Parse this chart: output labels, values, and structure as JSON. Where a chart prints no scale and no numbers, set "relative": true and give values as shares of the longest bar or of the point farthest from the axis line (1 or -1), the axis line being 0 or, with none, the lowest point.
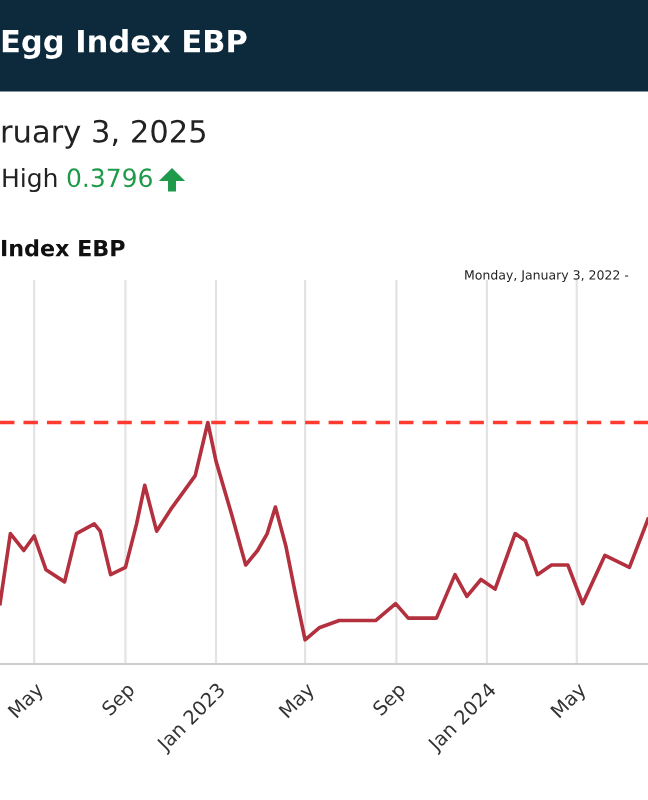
{
  "chart_data": {
    "type": "line",
    "title": "Egg Index EBP",
    "subtitle": "ruary 3, 2025",
    "annotations": [
      "High",
      "0.3796",
      "Index EBP",
      "Monday, January 3, 2022 -"
    ],
    "relative": true,
    "x": [
      "2022-03-16",
      "2022-03-30",
      "2022-04-17",
      "2022-05-01",
      "2022-05-17",
      "2022-06-11",
      "2022-06-27",
      "2022-07-21",
      "2022-07-29",
      "2022-08-12",
      "2022-09-01",
      "2022-09-16",
      "2022-09-27",
      "2022-10-13",
      "2022-11-01",
      "2022-12-04",
      "2022-12-21",
      "2023-01-01",
      "2023-01-22",
      "2023-02-10",
      "2023-02-26",
      "2023-03-11",
      "2023-03-22",
      "2023-04-05",
      "2023-04-18",
      "2023-05-01",
      "2023-05-20",
      "2023-06-16",
      "2023-08-04",
      "2023-08-31",
      "2023-09-17",
      "2023-10-25",
      "2023-11-19",
      "2023-12-05",
      "2023-12-24",
      "2024-01-12",
      "2024-02-08",
      "2024-02-22",
      "2024-03-09",
      "2024-03-28",
      "2024-04-19",
      "2024-05-09",
      "2024-06-08",
      "2024-07-11",
      "2024-08-05"
    ],
    "series": [
      {
        "color": "#b3303e",
        "values": [
          0.25,
          0.54,
          0.47,
          0.53,
          0.39,
          0.34,
          0.54,
          0.58,
          0.55,
          0.37,
          0.4,
          0.58,
          0.74,
          0.55,
          0.64,
          0.78,
          1,
          0.84,
          0.62,
          0.41,
          0.47,
          0.54,
          0.65,
          0.49,
          0.29,
          0.1,
          0.15,
          0.18,
          0.18,
          0.25,
          0.19,
          0.19,
          0.37,
          0.28,
          0.35,
          0.31,
          0.54,
          0.51,
          0.37,
          0.41,
          0.41,
          0.25,
          0.45,
          0.4,
          0.6
        ]
      }
    ],
    "xlim": [
      "2022-03-16",
      "2024-08-05"
    ],
    "xticks": [
      {
        "value": "2022-05-01",
        "label": "May"
      },
      {
        "value": "2022-09-01",
        "label": "Sep"
      },
      {
        "value": "2023-01-01",
        "label": "Jan 2023"
      },
      {
        "value": "2023-05-01",
        "label": "May"
      },
      {
        "value": "2023-09-01",
        "label": "Sep"
      },
      {
        "value": "2024-01-01",
        "label": "Jan 2024"
      },
      {
        "value": "2024-05-01",
        "label": "May"
      }
    ],
    "ref_lines": [
      {
        "axis": "y",
        "value": 1,
        "color": "#ff3b30",
        "line_style": "dashed"
      }
    ],
    "grid": "x"
  }
}
